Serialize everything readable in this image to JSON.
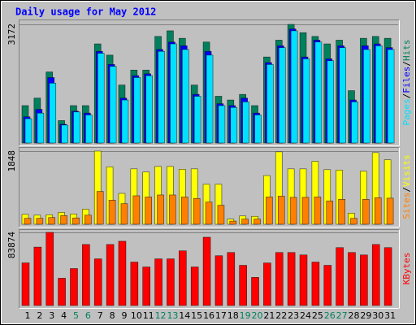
{
  "chart_data": {
    "type": "bar",
    "title": "Daily usage for May 2012",
    "categories": [
      "1",
      "2",
      "3",
      "4",
      "5",
      "6",
      "7",
      "8",
      "9",
      "10",
      "11",
      "12",
      "13",
      "14",
      "15",
      "16",
      "17",
      "18",
      "19",
      "20",
      "21",
      "22",
      "23",
      "24",
      "25",
      "26",
      "27",
      "28",
      "29",
      "30",
      "31"
    ],
    "category_colors": [
      "#000000",
      "#000000",
      "#000000",
      "#000000",
      "#00805c",
      "#00805c",
      "#000000",
      "#000000",
      "#000000",
      "#000000",
      "#000000",
      "#00805c",
      "#00805c",
      "#000000",
      "#000000",
      "#000000",
      "#000000",
      "#000000",
      "#00805c",
      "#00805c",
      "#000000",
      "#000000",
      "#000000",
      "#000000",
      "#000000",
      "#00805c",
      "#00805c",
      "#000000",
      "#000000",
      "#000000",
      "#000000"
    ],
    "legend_separator": "/",
    "panels": [
      {
        "ylim": [
          0,
          3172
        ],
        "yticks": [
          3172
        ],
        "series": [
          {
            "name": "Hits",
            "color": "#00805c",
            "values": [
              1000,
              1200,
              1900,
              600,
              1000,
              1000,
              2650,
              2350,
              1550,
              1950,
              1950,
              2850,
              3000,
              2800,
              1550,
              2700,
              1250,
              1150,
              1300,
              1000,
              2300,
              2750,
              3172,
              2950,
              2850,
              2650,
              2750,
              1400,
              2800,
              2850,
              2800
            ]
          },
          {
            "name": "Files",
            "color": "#0000ff",
            "values": [
              700,
              900,
              1750,
              500,
              850,
              800,
              2450,
              2100,
              1200,
              1800,
              1850,
              2500,
              2700,
              2600,
              1300,
              2450,
              1050,
              1000,
              1200,
              800,
              2150,
              2600,
              3050,
              2300,
              2750,
              2250,
              2600,
              1150,
              2600,
              2650,
              2550
            ]
          },
          {
            "name": "Pages",
            "color": "#00e0ff",
            "values": [
              650,
              800,
              1600,
              480,
              830,
              750,
              2400,
              2050,
              1150,
              1750,
              1800,
              2450,
              2650,
              2500,
              1250,
              2350,
              1000,
              950,
              1100,
              750,
              2100,
              2550,
              3000,
              2250,
              2700,
              2200,
              2550,
              1100,
              2500,
              2600,
              2500
            ]
          }
        ]
      },
      {
        "ylim": [
          0,
          1848
        ],
        "yticks": [
          1848
        ],
        "series": [
          {
            "name": "Visits",
            "color": "#ffff00",
            "values": [
              250,
              230,
              240,
              300,
              260,
              380,
              1848,
              1450,
              780,
              1400,
              1320,
              1460,
              1460,
              1390,
              1400,
              1010,
              1010,
              130,
              210,
              200,
              1230,
              1830,
              1400,
              1400,
              1590,
              1380,
              1370,
              280,
              1340,
              1810,
              1630
            ]
          },
          {
            "name": "Sites",
            "color": "#ff8000",
            "values": [
              150,
              150,
              170,
              220,
              160,
              230,
              830,
              610,
              520,
              720,
              690,
              740,
              740,
              690,
              650,
              560,
              480,
              80,
              130,
              130,
              690,
              710,
              680,
              680,
              690,
              590,
              630,
              150,
              630,
              670,
              660
            ]
          }
        ]
      },
      {
        "ylim": [
          0,
          83874
        ],
        "yticks": [
          83874
        ],
        "series": [
          {
            "name": "KBytes",
            "color": "#ff0000",
            "values": [
              48850,
              67000,
              83874,
              31300,
              42400,
              70000,
              53500,
              70000,
              73700,
              49800,
              44200,
              53500,
              53500,
              62700,
              44200,
              78300,
              57100,
              60800,
              46100,
              32300,
              48800,
              60800,
              60800,
              58000,
              49800,
              46100,
              66400,
              60800,
              58000,
              70000,
              66400
            ]
          }
        ]
      }
    ]
  }
}
